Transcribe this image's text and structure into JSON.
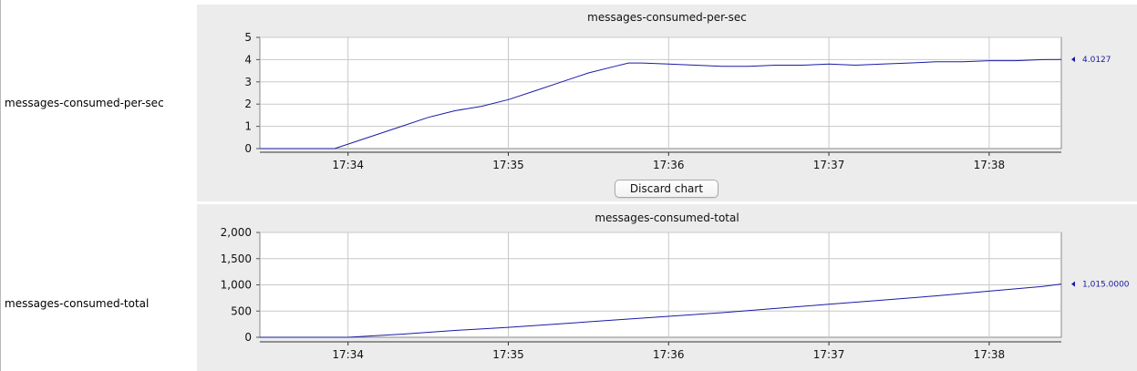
{
  "rows": [
    {
      "label": "messages-consumed-per-sec",
      "chart_title": "messages-consumed-per-sec",
      "current_value": "4.0127"
    },
    {
      "label": "messages-consumed-total",
      "chart_title": "messages-consumed-total",
      "current_value": "1,015.0000"
    }
  ],
  "discard_button": "Discard chart",
  "colors": {
    "line": "#1a1aa6",
    "panel_bg": "#ececec",
    "grid": "#c8c8c8"
  },
  "chart_data": [
    {
      "type": "line",
      "title": "messages-consumed-per-sec",
      "x_ticks": [
        "17:34",
        "17:35",
        "17:36",
        "17:37",
        "17:38"
      ],
      "y_ticks": [
        "0",
        "1",
        "2",
        "3",
        "4",
        "5"
      ],
      "ylim": [
        0,
        5
      ],
      "xlim": [
        "17:33:27",
        "17:38:27"
      ],
      "grid": true,
      "series": [
        {
          "x": [
            "17:33:27",
            "17:33:40",
            "17:33:55",
            "17:34:00",
            "17:34:10",
            "17:34:20",
            "17:34:30",
            "17:34:40",
            "17:34:50",
            "17:35:00",
            "17:35:10",
            "17:35:20",
            "17:35:30",
            "17:35:40",
            "17:35:45",
            "17:35:50",
            "17:36:00",
            "17:36:10",
            "17:36:20",
            "17:36:30",
            "17:36:40",
            "17:36:50",
            "17:37:00",
            "17:37:10",
            "17:37:20",
            "17:37:30",
            "17:37:40",
            "17:37:50",
            "17:38:00",
            "17:38:10",
            "17:38:20",
            "17:38:27"
          ],
          "y": [
            0,
            0,
            0,
            0.2,
            0.6,
            1.0,
            1.4,
            1.7,
            1.9,
            2.2,
            2.6,
            3.0,
            3.4,
            3.7,
            3.85,
            3.85,
            3.8,
            3.75,
            3.7,
            3.7,
            3.75,
            3.75,
            3.8,
            3.75,
            3.8,
            3.85,
            3.9,
            3.9,
            3.95,
            3.95,
            4.0,
            4.01
          ]
        }
      ]
    },
    {
      "type": "line",
      "title": "messages-consumed-total",
      "x_ticks": [
        "17:34",
        "17:35",
        "17:36",
        "17:37",
        "17:38"
      ],
      "y_ticks": [
        "0",
        "500",
        "1,000",
        "1,500",
        "2,000"
      ],
      "ylim": [
        0,
        2000
      ],
      "xlim": [
        "17:33:27",
        "17:38:27"
      ],
      "grid": true,
      "series": [
        {
          "x": [
            "17:33:27",
            "17:33:40",
            "17:34:00",
            "17:34:20",
            "17:34:40",
            "17:35:00",
            "17:35:20",
            "17:35:40",
            "17:36:00",
            "17:36:20",
            "17:36:40",
            "17:37:00",
            "17:37:20",
            "17:37:40",
            "17:38:00",
            "17:38:20",
            "17:38:27"
          ],
          "y": [
            0,
            0,
            0,
            60,
            130,
            190,
            260,
            330,
            400,
            470,
            550,
            630,
            710,
            790,
            880,
            970,
            1015
          ]
        }
      ]
    }
  ]
}
